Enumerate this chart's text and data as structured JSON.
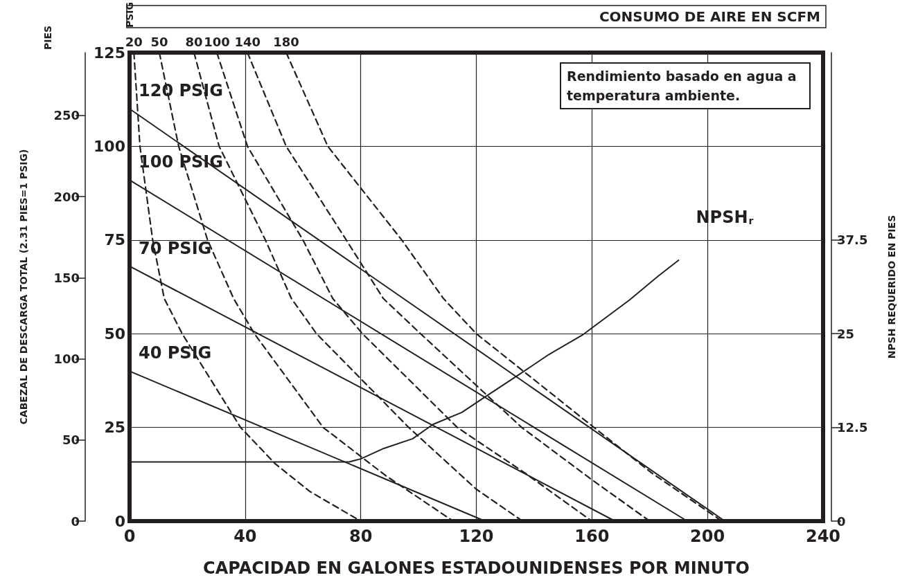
{
  "chart_data": {
    "type": "line",
    "xlabel": "CAPACIDAD EN GALONES ESTADOUNIDENSES POR MINUTO",
    "ylabel": "PSIG",
    "y2label": "CABEZAL DE DESCARGA TOTAL (2.31 PIES=1 PSIG)",
    "y3label": "NPSH REQUERIDO EN PIES",
    "annotations": [
      "CONSUMO DE AIRE EN SCFM",
      "Rendimiento basado en agua a temperatura ambiente.",
      "PIES"
    ],
    "xlim": [
      0,
      240
    ],
    "xticks": [
      0,
      40,
      80,
      120,
      160,
      200,
      240
    ],
    "ylim": [
      0,
      125
    ],
    "yticks": [
      0,
      25,
      50,
      75,
      100,
      125
    ],
    "y2lim": [
      0,
      288.75
    ],
    "y2ticks": [
      0,
      50,
      100,
      150,
      200,
      250
    ],
    "y3lim": [
      0,
      62.5
    ],
    "y3ticks": [
      0,
      12.5,
      25,
      37.5
    ],
    "grid": true,
    "legend": false,
    "marker": "none",
    "series": [
      {
        "name": "120 PSIG",
        "color": "#231f20",
        "line_style": "solid",
        "x": [
          0,
          206
        ],
        "values": [
          110,
          0
        ]
      },
      {
        "name": "100 PSIG",
        "color": "#231f20",
        "line_style": "solid",
        "x": [
          0,
          193
        ],
        "values": [
          91,
          0
        ]
      },
      {
        "name": "70 PSIG",
        "color": "#231f20",
        "line_style": "solid",
        "x": [
          0,
          168
        ],
        "values": [
          68,
          0
        ]
      },
      {
        "name": "40 PSIG",
        "color": "#231f20",
        "line_style": "solid",
        "x": [
          0,
          123
        ],
        "values": [
          40,
          0
        ]
      },
      {
        "name": "20",
        "color": "#231f20",
        "line_style": "dashed",
        "x": [
          1.5,
          3.6,
          8,
          12,
          18.2,
          38.4,
          50.4,
          62.4,
          80
        ],
        "values": [
          125,
          100,
          75,
          59.4,
          50,
          25,
          15.3,
          7.9,
          0
        ]
      },
      {
        "name": "50",
        "color": "#231f20",
        "line_style": "dashed",
        "x": [
          10.3,
          17,
          27,
          36,
          43.2,
          67,
          88.7,
          112
        ],
        "values": [
          125,
          100,
          75,
          59.4,
          50,
          25,
          12.1,
          0
        ]
      },
      {
        "name": "80",
        "color": "#231f20",
        "line_style": "dashed",
        "x": [
          22.3,
          31,
          47,
          56,
          64.7,
          96.6,
          120,
          136
        ],
        "values": [
          125,
          100,
          75,
          59.4,
          50,
          25,
          8.5,
          0
        ]
      },
      {
        "name": "100",
        "color": "#231f20",
        "line_style": "dashed",
        "x": [
          30.2,
          40.8,
          60,
          70.3,
          80.6,
          113.4,
          136.7,
          160
        ],
        "values": [
          125,
          100,
          75,
          59.4,
          50,
          25,
          12.9,
          0
        ]
      },
      {
        "name": "140",
        "color": "#231f20",
        "line_style": "dashed",
        "x": [
          40.8,
          54.2,
          75,
          87.8,
          100.7,
          135.7,
          159,
          180
        ],
        "values": [
          125,
          100,
          75,
          59.4,
          50,
          25,
          11.6,
          0
        ]
      },
      {
        "name": "180",
        "color": "#231f20",
        "line_style": "dashed",
        "x": [
          54.2,
          68.6,
          94.2,
          108.6,
          120,
          160.7,
          180.6,
          205
        ],
        "values": [
          125,
          100,
          75,
          59.4,
          50,
          25,
          12.9,
          0
        ]
      },
      {
        "name": "NPSH$_{r}$",
        "color": "#231f20",
        "line_style": "solid",
        "axis": "y3",
        "x": [
          0,
          76,
          80,
          88,
          98,
          105,
          115,
          122,
          135,
          145,
          157,
          173,
          183,
          190
        ],
        "values": [
          7.9,
          7.9,
          8.3,
          9.7,
          11,
          12.9,
          14.5,
          16.3,
          19.6,
          22.2,
          24.9,
          29.5,
          32.7,
          34.8
        ]
      }
    ]
  }
}
